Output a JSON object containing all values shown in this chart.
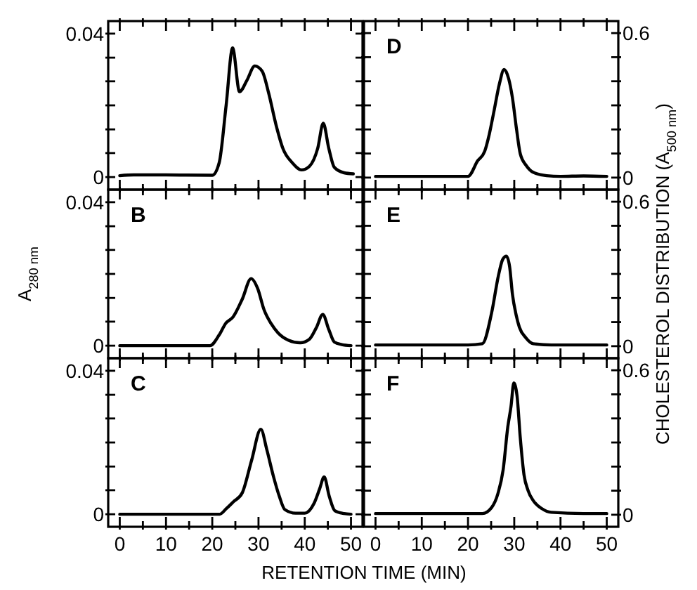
{
  "chart_data": [
    {
      "type": "line",
      "xlim": [
        -2.5,
        52.5
      ],
      "ylim": [
        -0.0035,
        0.0435
      ],
      "xticks": [
        0,
        {
          "value": 5,
          "label": null
        },
        10,
        {
          "value": 15,
          "label": null
        },
        20,
        {
          "value": 25,
          "label": null
        },
        30,
        {
          "value": 35,
          "label": null
        },
        40,
        {
          "value": 45,
          "label": null
        },
        50
      ],
      "yticks": [
        0,
        {
          "value": 0.0067,
          "label": null
        },
        {
          "value": 0.0133,
          "label": null
        },
        {
          "value": 0.02,
          "label": null
        },
        {
          "value": 0.0267,
          "label": null
        },
        {
          "value": 0.0333,
          "label": null
        },
        0.04
      ],
      "tick_labels": "y",
      "grid": false,
      "marker": "none",
      "line_style": "solid",
      "series": [
        {
          "color": "#000000",
          "x": [
            0,
            3,
            10,
            20,
            21.5,
            23,
            24.4,
            25.9,
            27.5,
            29.2,
            30.8,
            32.2,
            33.8,
            35.3,
            37.3,
            39.3,
            41,
            42.8,
            44,
            45.2,
            46.4,
            48.5,
            50.5
          ],
          "values": [
            0.0004,
            0.0006,
            0.0006,
            0.0005,
            0.004,
            0.02,
            0.036,
            0.0238,
            0.027,
            0.031,
            0.0295,
            0.0234,
            0.0145,
            0.0079,
            0.004,
            0.002,
            0.003,
            0.008,
            0.015,
            0.008,
            0.0027,
            0.0012,
            0.0009
          ]
        }
      ]
    },
    {
      "type": "line",
      "title": "D",
      "xlim": [
        -2.5,
        52.5
      ],
      "ylim": [
        -0.05,
        0.65
      ],
      "xticks": [
        0,
        {
          "value": 5,
          "label": null
        },
        10,
        {
          "value": 15,
          "label": null
        },
        20,
        {
          "value": 25,
          "label": null
        },
        30,
        {
          "value": 35,
          "label": null
        },
        40,
        {
          "value": 45,
          "label": null
        },
        50
      ],
      "yticks": [
        0,
        {
          "value": 0.1,
          "label": null
        },
        {
          "value": 0.2,
          "label": null
        },
        {
          "value": 0.3,
          "label": null
        },
        {
          "value": 0.4,
          "label": null
        },
        {
          "value": 0.5,
          "label": null
        },
        0.6
      ],
      "tick_labels": "y",
      "grid": false,
      "marker": "none",
      "line_style": "solid",
      "series": [
        {
          "color": "#000000",
          "x": [
            0,
            10,
            20,
            22.1,
            23.6,
            24.6,
            25.6,
            26.8,
            27.8,
            28.8,
            29.6,
            30.5,
            31.3,
            32.6,
            34.1,
            37,
            40,
            45,
            50
          ],
          "values": [
            0.005,
            0.005,
            0.005,
            0.07,
            0.109,
            0.18,
            0.274,
            0.39,
            0.449,
            0.41,
            0.332,
            0.2,
            0.099,
            0.05,
            0.022,
            0.008,
            0.005,
            0.007,
            0.005
          ]
        }
      ]
    },
    {
      "type": "line",
      "title": "B",
      "ylabel": "A$_{280 nm}$",
      "xlim": [
        -2.5,
        52.5
      ],
      "ylim": [
        -0.0035,
        0.0435
      ],
      "xticks": [
        0,
        {
          "value": 5,
          "label": null
        },
        10,
        {
          "value": 15,
          "label": null
        },
        20,
        {
          "value": 25,
          "label": null
        },
        30,
        {
          "value": 35,
          "label": null
        },
        40,
        {
          "value": 45,
          "label": null
        },
        50
      ],
      "yticks": [
        0,
        {
          "value": 0.0067,
          "label": null
        },
        {
          "value": 0.0133,
          "label": null
        },
        {
          "value": 0.02,
          "label": null
        },
        {
          "value": 0.0267,
          "label": null
        },
        {
          "value": 0.0333,
          "label": null
        },
        0.04
      ],
      "tick_labels": "y",
      "grid": false,
      "marker": "none",
      "line_style": "solid",
      "series": [
        {
          "color": "#000000",
          "x": [
            0,
            10,
            19.5,
            21.5,
            22.9,
            24.5,
            26.5,
            28.4,
            29.8,
            31.2,
            32.7,
            34.2,
            36.5,
            39,
            41,
            42.5,
            43.9,
            45.2,
            46.4,
            48,
            50
          ],
          "values": [
            0,
            0,
            0,
            0.003,
            0.0062,
            0.008,
            0.013,
            0.0187,
            0.016,
            0.01,
            0.0062,
            0.0036,
            0.0015,
            0.0008,
            0.0018,
            0.005,
            0.0087,
            0.0045,
            0.001,
            0.0003,
            0
          ]
        }
      ]
    },
    {
      "type": "line",
      "title": "E",
      "ylabel": "CHOLESTEROL DISTRIBUTION (A$_{500 nm}$)",
      "xlim": [
        -2.5,
        52.5
      ],
      "ylim": [
        -0.05,
        0.65
      ],
      "xticks": [
        0,
        {
          "value": 5,
          "label": null
        },
        10,
        {
          "value": 15,
          "label": null
        },
        20,
        {
          "value": 25,
          "label": null
        },
        30,
        {
          "value": 35,
          "label": null
        },
        40,
        {
          "value": 45,
          "label": null
        },
        50
      ],
      "yticks": [
        0,
        {
          "value": 0.1,
          "label": null
        },
        {
          "value": 0.2,
          "label": null
        },
        {
          "value": 0.3,
          "label": null
        },
        {
          "value": 0.4,
          "label": null
        },
        {
          "value": 0.5,
          "label": null
        },
        0.6
      ],
      "tick_labels": "y",
      "grid": false,
      "marker": "none",
      "line_style": "solid",
      "series": [
        {
          "color": "#000000",
          "x": [
            0,
            10,
            20,
            23.1,
            25.1,
            26.6,
            27.5,
            28.3,
            29,
            29.6,
            30.4,
            31.1,
            32.5,
            34.1,
            38,
            45,
            50
          ],
          "values": [
            0.005,
            0.005,
            0.005,
            0.01,
            0.138,
            0.295,
            0.36,
            0.374,
            0.33,
            0.217,
            0.13,
            0.079,
            0.035,
            0.01,
            0.005,
            0.005,
            0.005
          ]
        }
      ]
    },
    {
      "type": "line",
      "title": "C",
      "xlabel": "RETENTION TIME (MIN)",
      "xlim": [
        -2.5,
        52.5
      ],
      "ylim": [
        -0.0035,
        0.0435
      ],
      "xticks": [
        0,
        {
          "value": 5,
          "label": null
        },
        10,
        {
          "value": 15,
          "label": null
        },
        20,
        {
          "value": 25,
          "label": null
        },
        30,
        {
          "value": 35,
          "label": null
        },
        40,
        {
          "value": 45,
          "label": null
        },
        50
      ],
      "yticks": [
        0,
        {
          "value": 0.0067,
          "label": null
        },
        {
          "value": 0.0133,
          "label": null
        },
        {
          "value": 0.02,
          "label": null
        },
        {
          "value": 0.0267,
          "label": null
        },
        {
          "value": 0.0333,
          "label": null
        },
        0.04
      ],
      "grid": false,
      "marker": "none",
      "line_style": "solid",
      "series": [
        {
          "color": "#000000",
          "x": [
            0,
            10,
            21.6,
            23,
            24.6,
            26.5,
            28.5,
            30.5,
            31.8,
            33.2,
            34.5,
            35.7,
            38,
            40,
            42,
            43.2,
            44.2,
            45.3,
            46.5,
            48.5,
            50
          ],
          "values": [
            0,
            0,
            0,
            0.0015,
            0.0035,
            0.006,
            0.015,
            0.0237,
            0.018,
            0.0107,
            0.005,
            0.0013,
            0.0003,
            0.0003,
            0.003,
            0.007,
            0.0104,
            0.005,
            0.001,
            0.0002,
            0
          ]
        }
      ]
    },
    {
      "type": "line",
      "title": "F",
      "xlim": [
        -2.5,
        52.5
      ],
      "ylim": [
        -0.05,
        0.65
      ],
      "xticks": [
        0,
        {
          "value": 5,
          "label": null
        },
        10,
        {
          "value": 15,
          "label": null
        },
        20,
        {
          "value": 25,
          "label": null
        },
        30,
        {
          "value": 35,
          "label": null
        },
        40,
        {
          "value": 45,
          "label": null
        },
        50
      ],
      "yticks": [
        0,
        {
          "value": 0.1,
          "label": null
        },
        {
          "value": 0.2,
          "label": null
        },
        {
          "value": 0.3,
          "label": null
        },
        {
          "value": 0.4,
          "label": null
        },
        {
          "value": 0.5,
          "label": null
        },
        0.6
      ],
      "grid": false,
      "marker": "none",
      "line_style": "solid",
      "series": [
        {
          "color": "#000000",
          "x": [
            0,
            10,
            20,
            23.1,
            25.1,
            26.5,
            27.6,
            28.6,
            29.3,
            29.9,
            30.6,
            31.3,
            32.1,
            33,
            34.1,
            36,
            38,
            45,
            50
          ],
          "values": [
            0.005,
            0.005,
            0.005,
            0.005,
            0.03,
            0.09,
            0.187,
            0.364,
            0.45,
            0.547,
            0.494,
            0.32,
            0.167,
            0.1,
            0.059,
            0.025,
            0.01,
            0.005,
            0.005
          ]
        }
      ]
    }
  ]
}
